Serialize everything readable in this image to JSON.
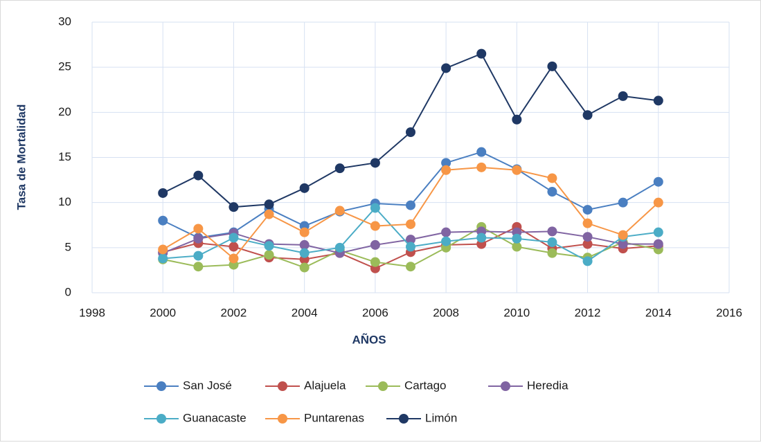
{
  "chart_data": {
    "type": "line",
    "x_label": "AÑOS",
    "y_label": "Tasa de Mortalidad",
    "x": [
      2000,
      2001,
      2002,
      2003,
      2004,
      2005,
      2006,
      2007,
      2008,
      2009,
      2010,
      2011,
      2012,
      2013,
      2014
    ],
    "xlim": [
      1998,
      2016
    ],
    "xticks": [
      1998,
      2000,
      2002,
      2004,
      2006,
      2008,
      2010,
      2012,
      2014,
      2016
    ],
    "ylim": [
      0,
      30
    ],
    "yticks": [
      0,
      5,
      10,
      15,
      20,
      25,
      30
    ],
    "grid": true,
    "legend": "bottom",
    "series": [
      {
        "name": "San José",
        "color": "#4a7fc1",
        "values": [
          8.0,
          6.1,
          6.7,
          9.3,
          7.4,
          9.0,
          9.9,
          9.7,
          14.4,
          15.6,
          13.7,
          11.2,
          9.2,
          10.0,
          12.3
        ]
      },
      {
        "name": "Alajuela",
        "color": "#c0504d",
        "values": [
          4.5,
          5.5,
          5.1,
          3.9,
          3.7,
          4.4,
          2.7,
          4.5,
          5.3,
          5.4,
          7.3,
          4.9,
          5.4,
          4.9,
          5.2
        ]
      },
      {
        "name": "Cartago",
        "color": "#9bbb59",
        "values": [
          3.7,
          2.9,
          3.1,
          4.2,
          2.8,
          4.7,
          3.4,
          2.9,
          5.0,
          7.3,
          5.1,
          4.4,
          3.9,
          5.6,
          4.8
        ]
      },
      {
        "name": "Heredia",
        "color": "#8064a2",
        "values": [
          4.4,
          6.0,
          6.6,
          5.4,
          5.3,
          4.4,
          5.3,
          5.9,
          6.7,
          6.8,
          6.7,
          6.8,
          6.2,
          5.4,
          5.4
        ]
      },
      {
        "name": "Guanacaste",
        "color": "#4bacc6",
        "values": [
          3.8,
          4.1,
          6.1,
          5.2,
          4.4,
          5.0,
          9.4,
          5.1,
          5.7,
          6.1,
          6.0,
          5.6,
          3.5,
          6.2,
          6.7
        ]
      },
      {
        "name": "Puntarenas",
        "color": "#f79646",
        "values": [
          4.8,
          7.1,
          3.8,
          8.7,
          6.7,
          9.1,
          7.4,
          7.6,
          13.6,
          13.9,
          13.6,
          12.7,
          7.7,
          6.4,
          10.0
        ]
      },
      {
        "name": "Limón",
        "color": "#1f3864",
        "values": [
          11.05,
          13.0,
          9.5,
          9.8,
          11.6,
          13.8,
          14.4,
          17.8,
          24.9,
          26.5,
          19.2,
          25.1,
          19.7,
          21.8,
          21.3
        ]
      }
    ]
  }
}
